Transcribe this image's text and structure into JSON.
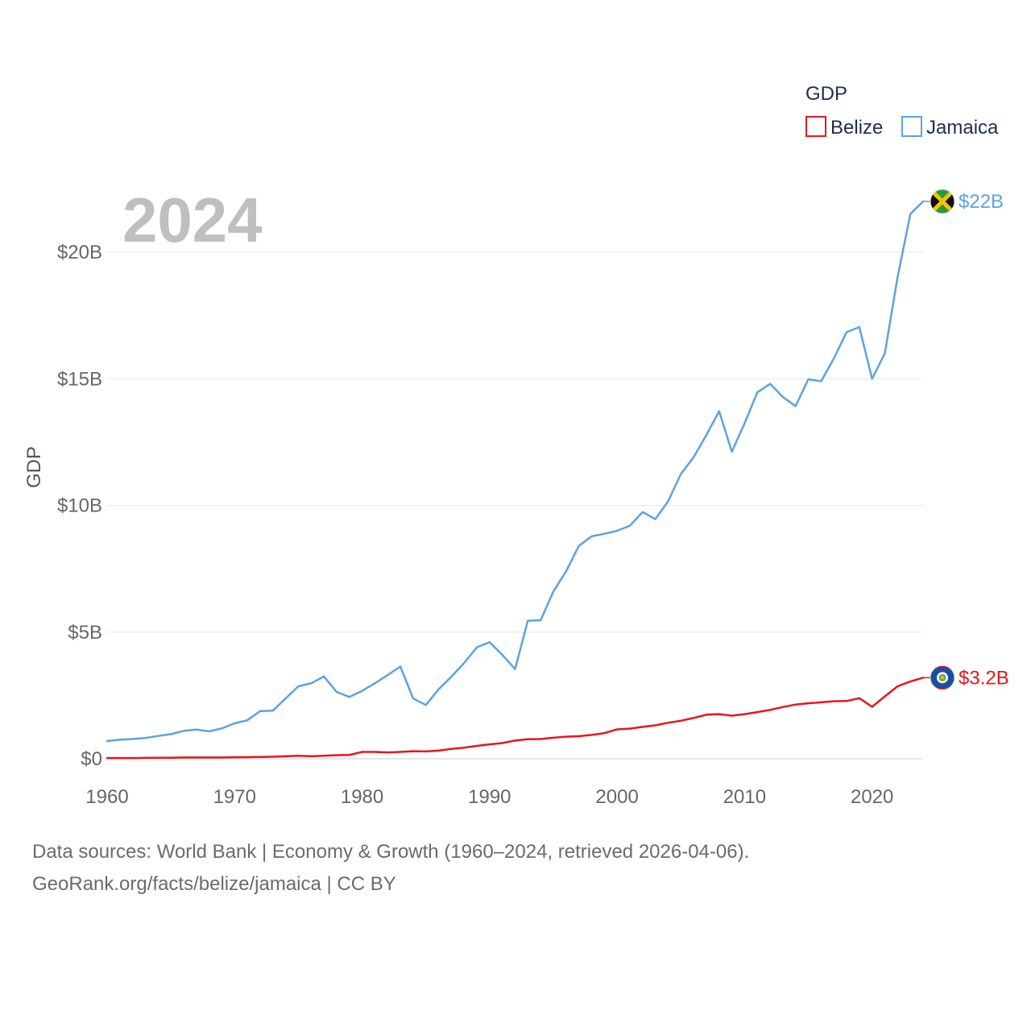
{
  "chart_data": {
    "type": "line",
    "year_label": "2024",
    "ylabel": "GDP",
    "xlabel": "",
    "xlim": [
      1960,
      2024
    ],
    "ylim": [
      0,
      22
    ],
    "x_ticks": [
      1960,
      1970,
      1980,
      1990,
      2000,
      2010,
      2020
    ],
    "y_ticks": [
      {
        "value": 0,
        "label": "$0"
      },
      {
        "value": 5,
        "label": "$5B"
      },
      {
        "value": 10,
        "label": "$10B"
      },
      {
        "value": 15,
        "label": "$15B"
      },
      {
        "value": 20,
        "label": "$20B"
      }
    ],
    "grid": true,
    "legend": {
      "title": "GDP",
      "position": "top-right"
    },
    "x": [
      1960,
      1961,
      1962,
      1963,
      1964,
      1965,
      1966,
      1967,
      1968,
      1969,
      1970,
      1971,
      1972,
      1973,
      1974,
      1975,
      1976,
      1977,
      1978,
      1979,
      1980,
      1981,
      1982,
      1983,
      1984,
      1985,
      1986,
      1987,
      1988,
      1989,
      1990,
      1991,
      1992,
      1993,
      1994,
      1995,
      1996,
      1997,
      1998,
      1999,
      2000,
      2001,
      2002,
      2003,
      2004,
      2005,
      2006,
      2007,
      2008,
      2009,
      2010,
      2011,
      2012,
      2013,
      2014,
      2015,
      2016,
      2017,
      2018,
      2019,
      2020,
      2021,
      2022,
      2023,
      2024
    ],
    "series": [
      {
        "name": "Belize",
        "color": "#e8161b",
        "end_label": "$3.2B",
        "flag": "belize",
        "values": [
          0.03,
          0.03,
          0.03,
          0.035,
          0.04,
          0.04,
          0.05,
          0.05,
          0.05,
          0.05,
          0.06,
          0.065,
          0.07,
          0.08,
          0.1,
          0.12,
          0.1,
          0.12,
          0.14,
          0.15,
          0.27,
          0.27,
          0.25,
          0.27,
          0.3,
          0.29,
          0.32,
          0.39,
          0.44,
          0.51,
          0.57,
          0.62,
          0.72,
          0.77,
          0.78,
          0.83,
          0.87,
          0.89,
          0.94,
          1.01,
          1.16,
          1.19,
          1.26,
          1.32,
          1.42,
          1.5,
          1.61,
          1.74,
          1.76,
          1.7,
          1.76,
          1.84,
          1.93,
          2.04,
          2.14,
          2.19,
          2.23,
          2.27,
          2.28,
          2.39,
          2.05,
          2.46,
          2.86,
          3.05,
          3.2
        ]
      },
      {
        "name": "Jamaica",
        "color": "#5ba3e0",
        "end_label": "$22B",
        "flag": "jamaica",
        "values": [
          0.7,
          0.75,
          0.78,
          0.82,
          0.9,
          0.97,
          1.1,
          1.15,
          1.08,
          1.2,
          1.4,
          1.52,
          1.88,
          1.9,
          2.38,
          2.86,
          2.98,
          3.25,
          2.64,
          2.44,
          2.68,
          2.98,
          3.3,
          3.64,
          2.38,
          2.12,
          2.74,
          3.24,
          3.78,
          4.4,
          4.6,
          4.1,
          3.54,
          5.45,
          5.47,
          6.6,
          7.4,
          8.4,
          8.78,
          8.88,
          9.0,
          9.2,
          9.74,
          9.46,
          10.16,
          11.24,
          11.9,
          12.78,
          13.72,
          12.12,
          13.24,
          14.46,
          14.8,
          14.28,
          13.92,
          14.98,
          14.9,
          15.8,
          16.84,
          17.04,
          15.0,
          16.0,
          19.0,
          21.5,
          22.0
        ]
      }
    ]
  },
  "footer": {
    "source_line": "Data sources: World Bank | Economy & Growth (1960–2024, retrieved 2026-04-06).",
    "attribution_line": "GeoRank.org/facts/belize/jamaica | CC BY"
  }
}
